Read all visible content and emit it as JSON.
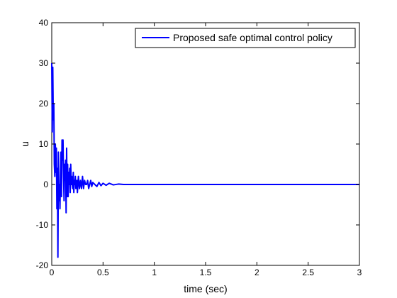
{
  "figure": {
    "background": "#ffffff"
  },
  "chart_data": {
    "type": "line",
    "title": "",
    "xlabel": "time (sec)",
    "ylabel": "u",
    "xlim": [
      0,
      3
    ],
    "ylim": [
      -20,
      40
    ],
    "xticks": [
      0,
      0.5,
      1,
      1.5,
      2,
      2.5,
      3
    ],
    "xtick_labels": [
      "0",
      "0.5",
      "1",
      "1.5",
      "2",
      "2.5",
      "3"
    ],
    "yticks": [
      -20,
      -10,
      0,
      10,
      20,
      30,
      40
    ],
    "ytick_labels": [
      "-20",
      "-10",
      "0",
      "10",
      "20",
      "30",
      "40"
    ],
    "grid": false,
    "legend_position": "top-right",
    "series": [
      {
        "name": "Proposed safe optimal control policy",
        "color": "#0000ff",
        "x": [
          0,
          0.005,
          0.01,
          0.015,
          0.02,
          0.025,
          0.03,
          0.035,
          0.04,
          0.045,
          0.05,
          0.055,
          0.06,
          0.065,
          0.07,
          0.075,
          0.08,
          0.085,
          0.09,
          0.095,
          0.1,
          0.105,
          0.11,
          0.115,
          0.12,
          0.125,
          0.13,
          0.135,
          0.14,
          0.145,
          0.15,
          0.155,
          0.16,
          0.165,
          0.17,
          0.175,
          0.18,
          0.185,
          0.19,
          0.195,
          0.2,
          0.205,
          0.21,
          0.215,
          0.22,
          0.225,
          0.23,
          0.235,
          0.24,
          0.245,
          0.25,
          0.26,
          0.27,
          0.28,
          0.29,
          0.3,
          0.31,
          0.32,
          0.33,
          0.34,
          0.35,
          0.36,
          0.37,
          0.38,
          0.39,
          0.4,
          0.42,
          0.44,
          0.46,
          0.48,
          0.5,
          0.53,
          0.56,
          0.6,
          0.65,
          0.7,
          0.8,
          1.0,
          3.0
        ],
        "y": [
          30,
          13,
          29,
          16,
          20,
          5,
          2,
          10,
          3,
          9,
          -6,
          4,
          -18,
          8,
          -4,
          0,
          -6,
          2,
          8,
          -3,
          11,
          6,
          11,
          2,
          -4,
          5,
          1,
          6,
          -7,
          9,
          -3,
          5,
          -3,
          3,
          0,
          4,
          -2,
          5,
          0,
          2,
          0,
          -1,
          3,
          -2,
          1,
          0,
          2,
          -1,
          0,
          1,
          -2,
          2,
          -1,
          1,
          -1,
          2,
          -1,
          1,
          0,
          0,
          1,
          -1,
          0,
          1,
          -0.5,
          0.5,
          0,
          -0.5,
          0.5,
          -0.3,
          0.3,
          -0.2,
          0.3,
          -0.1,
          0.1,
          0,
          0,
          0,
          0
        ]
      }
    ]
  }
}
